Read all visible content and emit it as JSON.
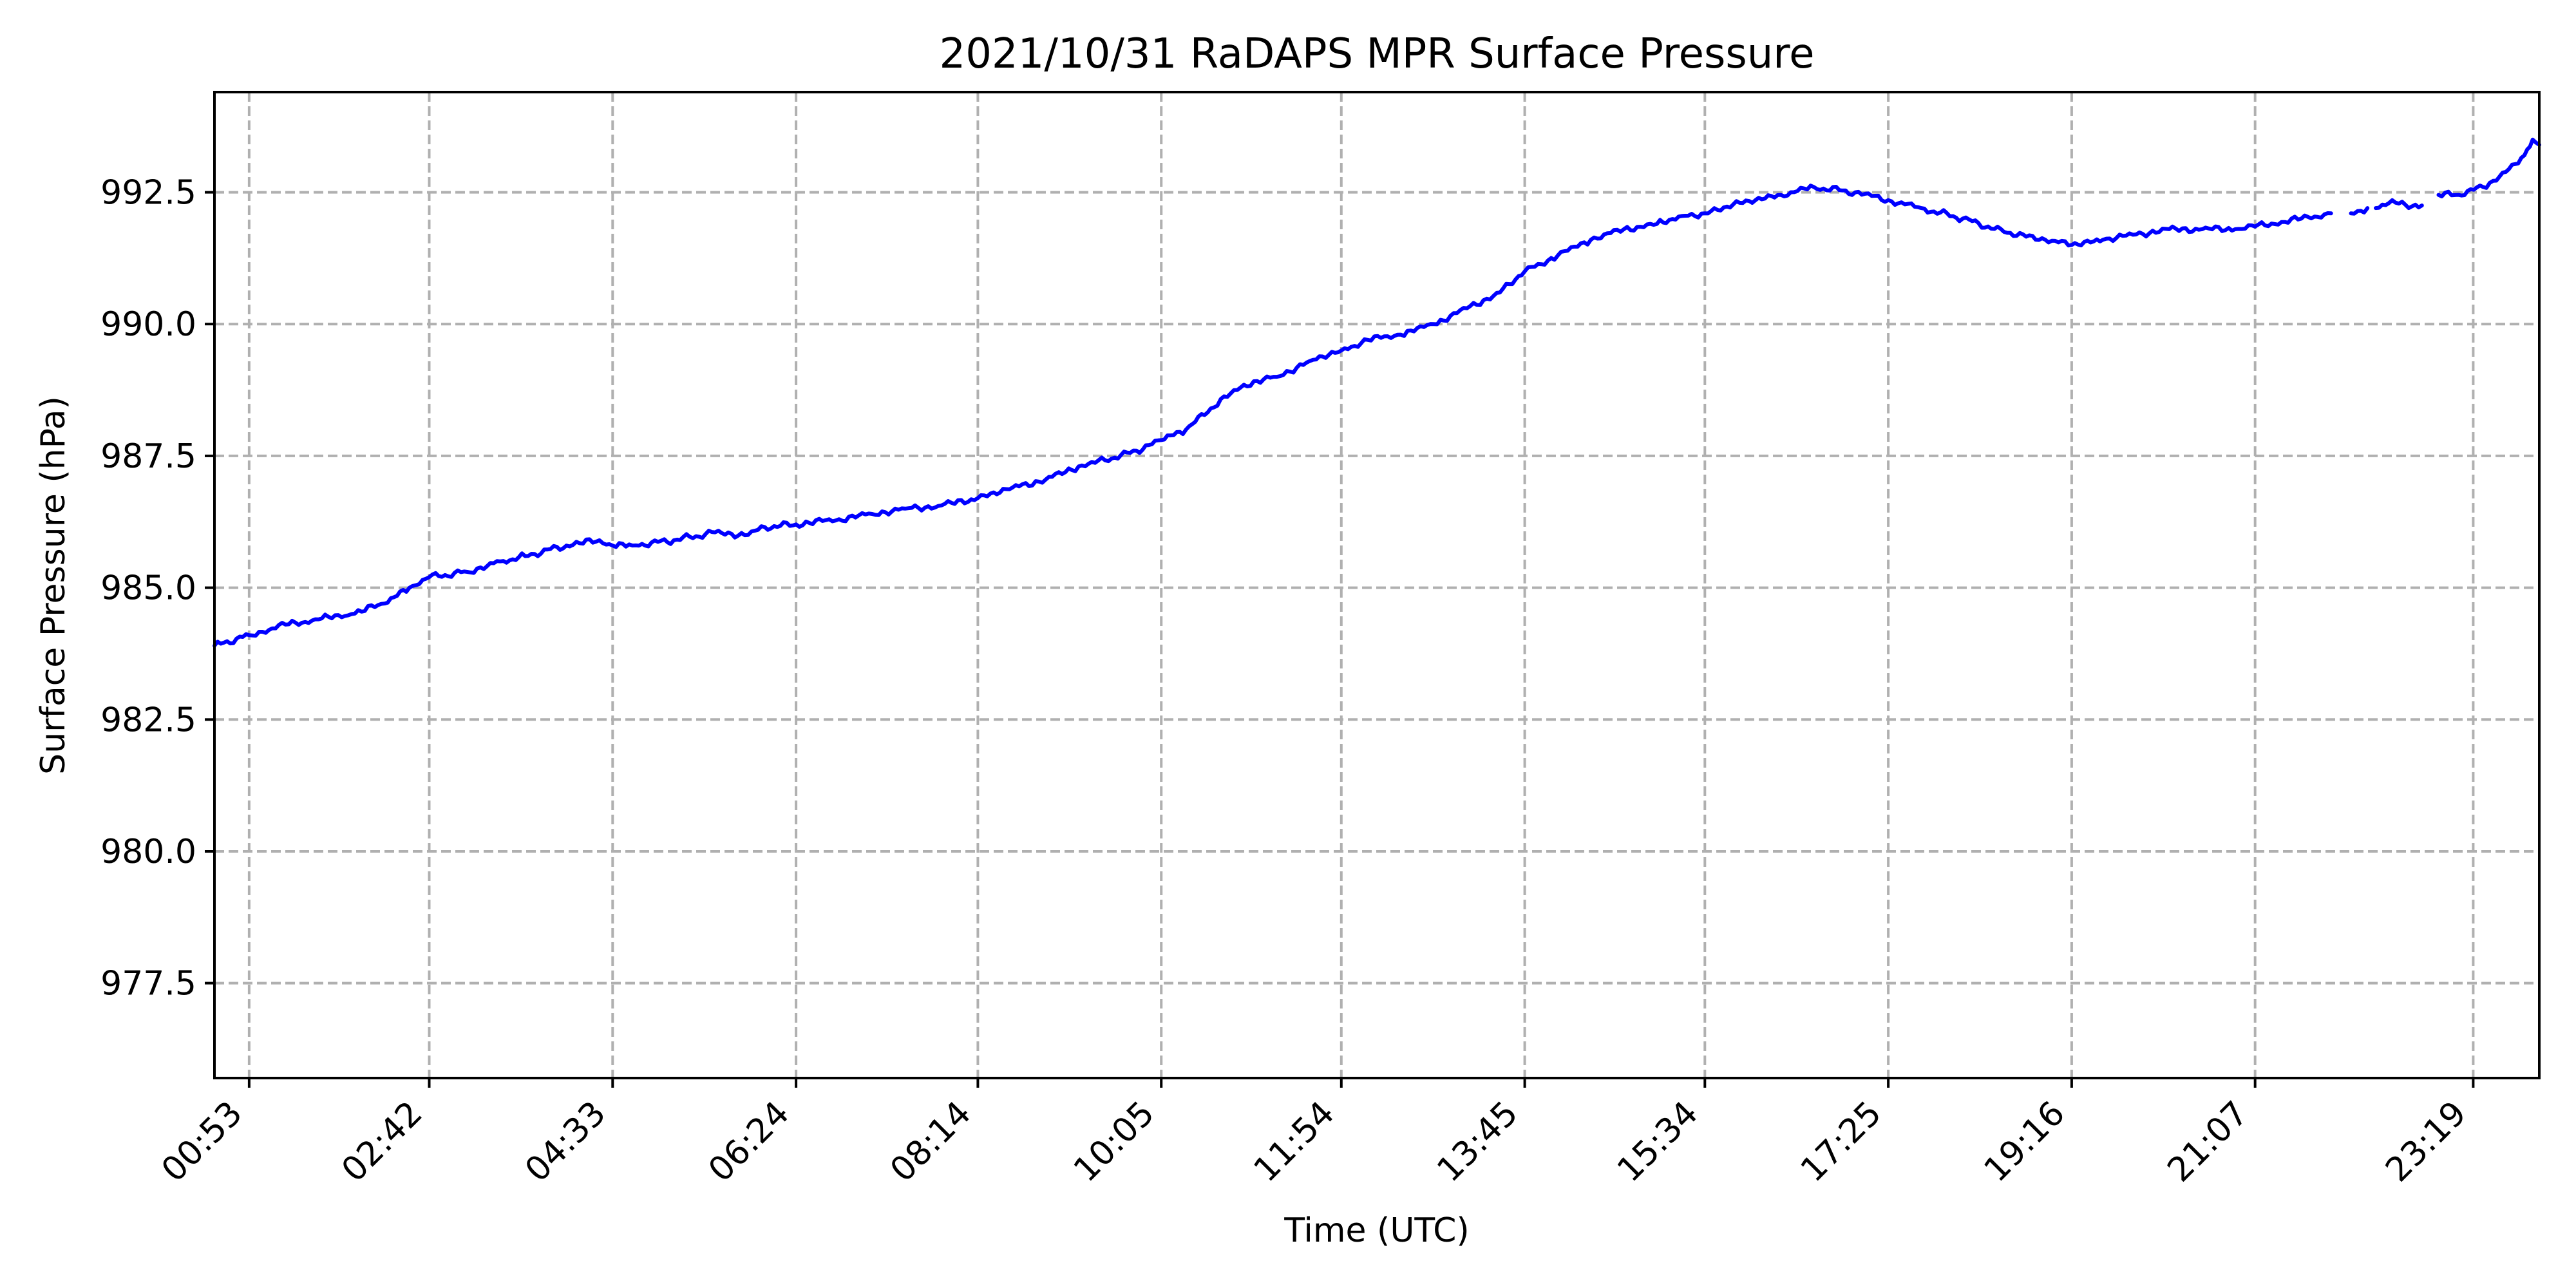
{
  "chart_data": {
    "type": "line",
    "title": "2021/10/31 RaDAPS MPR Surface Pressure",
    "xlabel": "Time (UTC)",
    "ylabel": "Surface Pressure (hPa)",
    "xlim": [
      "00:32",
      "23:59"
    ],
    "ylim": [
      975.7,
      994.4
    ],
    "x_ticks": [
      "00:53",
      "02:42",
      "04:33",
      "06:24",
      "08:14",
      "10:05",
      "11:54",
      "13:45",
      "15:34",
      "17:25",
      "19:16",
      "21:07",
      "23:19"
    ],
    "y_ticks": [
      "977.5",
      "980.0",
      "982.5",
      "985.0",
      "987.5",
      "990.0",
      "992.5"
    ],
    "grid": true,
    "line_color": "#0000ff",
    "series": [
      {
        "values": [
          [
            "00:32",
            983.9
          ],
          [
            "00:53",
            984.1
          ],
          [
            "01:15",
            984.3
          ],
          [
            "01:35",
            984.4
          ],
          [
            "01:55",
            984.5
          ],
          [
            "02:15",
            984.7
          ],
          [
            "02:30",
            985.0
          ],
          [
            "02:42",
            985.2
          ],
          [
            "03:05",
            985.3
          ],
          [
            "03:25",
            985.5
          ],
          [
            "03:40",
            985.6
          ],
          [
            "04:05",
            985.8
          ],
          [
            "04:25",
            985.9
          ],
          [
            "04:33",
            985.8
          ],
          [
            "04:45",
            985.8
          ],
          [
            "05:10",
            985.9
          ],
          [
            "05:35",
            986.05
          ],
          [
            "05:55",
            986.0
          ],
          [
            "06:05",
            986.15
          ],
          [
            "06:24",
            986.2
          ],
          [
            "06:50",
            986.3
          ],
          [
            "07:10",
            986.4
          ],
          [
            "07:30",
            986.5
          ],
          [
            "07:50",
            986.55
          ],
          [
            "08:14",
            986.7
          ],
          [
            "08:35",
            986.9
          ],
          [
            "08:55",
            987.05
          ],
          [
            "09:15",
            987.3
          ],
          [
            "09:35",
            987.45
          ],
          [
            "09:50",
            987.6
          ],
          [
            "10:05",
            987.8
          ],
          [
            "10:20",
            988.0
          ],
          [
            "10:35",
            988.4
          ],
          [
            "10:55",
            988.85
          ],
          [
            "11:15",
            989.0
          ],
          [
            "11:35",
            989.3
          ],
          [
            "11:54",
            989.5
          ],
          [
            "12:10",
            989.7
          ],
          [
            "12:30",
            989.8
          ],
          [
            "12:50",
            990.0
          ],
          [
            "13:10",
            990.3
          ],
          [
            "13:30",
            990.6
          ],
          [
            "13:45",
            991.0
          ],
          [
            "14:05",
            991.3
          ],
          [
            "14:25",
            991.6
          ],
          [
            "14:45",
            991.8
          ],
          [
            "15:05",
            991.9
          ],
          [
            "15:20",
            992.05
          ],
          [
            "15:34",
            992.1
          ],
          [
            "15:55",
            992.3
          ],
          [
            "16:20",
            992.45
          ],
          [
            "16:40",
            992.6
          ],
          [
            "17:05",
            992.5
          ],
          [
            "17:25",
            992.35
          ],
          [
            "17:45",
            992.2
          ],
          [
            "18:10",
            992.0
          ],
          [
            "18:35",
            991.75
          ],
          [
            "19:00",
            991.6
          ],
          [
            "19:16",
            991.5
          ],
          [
            "19:35",
            991.6
          ],
          [
            "19:55",
            991.7
          ],
          [
            "20:15",
            991.8
          ],
          [
            "20:35",
            991.8
          ],
          [
            "20:55",
            991.8
          ],
          [
            "21:07",
            991.85
          ],
          [
            "21:35",
            992.0
          ],
          [
            "21:53",
            992.1
          ],
          null,
          [
            "22:05",
            992.1
          ],
          [
            "22:15",
            992.2
          ],
          null,
          [
            "22:20",
            992.2
          ],
          [
            "22:30",
            992.35
          ],
          [
            "22:40",
            992.2
          ],
          [
            "22:48",
            992.25
          ],
          null,
          [
            "22:58",
            992.45
          ],
          [
            "23:10",
            992.45
          ],
          [
            "23:25",
            992.6
          ],
          [
            "23:35",
            992.8
          ],
          [
            "23:50",
            993.2
          ],
          [
            "23:55",
            993.5
          ],
          [
            "23:59",
            993.4
          ]
        ]
      }
    ]
  }
}
